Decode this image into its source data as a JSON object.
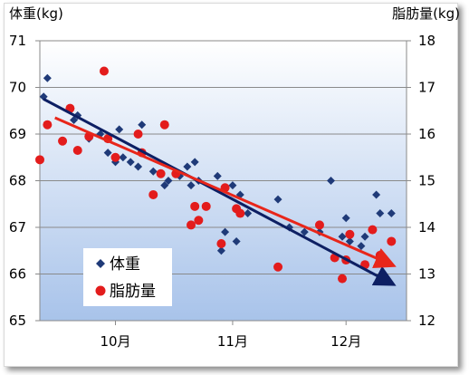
{
  "chart_data": {
    "type": "scatter",
    "title": "",
    "y_left_label": "体重(kg)",
    "y_right_label": "脂肪量(kg)",
    "y_left_ticks": [
      65,
      66,
      67,
      68,
      69,
      70,
      71
    ],
    "y_right_ticks": [
      12,
      13,
      14,
      15,
      16,
      17,
      18
    ],
    "y_left_lim": [
      65,
      71
    ],
    "y_right_lim": [
      12,
      18
    ],
    "x_ticks": [
      "10月",
      "11月",
      "12月"
    ],
    "x_lim": [
      "2012-09-11",
      "2012-12-17"
    ],
    "x_tick_dates": [
      "2012-10-01",
      "2012-11-01",
      "2012-12-01"
    ],
    "grid": "horizontal",
    "legend_placement": "bottom-left",
    "series": [
      {
        "name": "体重",
        "axis": "left",
        "marker": "diamond",
        "color": "#1f3a78",
        "points": [
          [
            "2012-09-12",
            69.8
          ],
          [
            "2012-09-13",
            70.2
          ],
          [
            "2012-09-20",
            69.3
          ],
          [
            "2012-09-21",
            69.4
          ],
          [
            "2012-09-24",
            68.9
          ],
          [
            "2012-09-27",
            69.0
          ],
          [
            "2012-09-29",
            68.6
          ],
          [
            "2012-10-01",
            68.4
          ],
          [
            "2012-10-02",
            69.1
          ],
          [
            "2012-10-03",
            68.5
          ],
          [
            "2012-10-05",
            68.4
          ],
          [
            "2012-10-07",
            68.3
          ],
          [
            "2012-10-08",
            69.2
          ],
          [
            "2012-10-11",
            68.2
          ],
          [
            "2012-10-14",
            67.9
          ],
          [
            "2012-10-15",
            68.0
          ],
          [
            "2012-10-18",
            68.1
          ],
          [
            "2012-10-20",
            68.3
          ],
          [
            "2012-10-21",
            67.9
          ],
          [
            "2012-10-22",
            68.4
          ],
          [
            "2012-10-23",
            68.0
          ],
          [
            "2012-10-28",
            68.1
          ],
          [
            "2012-10-29",
            66.5
          ],
          [
            "2012-10-30",
            66.9
          ],
          [
            "2012-11-01",
            67.9
          ],
          [
            "2012-11-02",
            66.7
          ],
          [
            "2012-11-03",
            67.7
          ],
          [
            "2012-11-05",
            67.3
          ],
          [
            "2012-11-13",
            67.6
          ],
          [
            "2012-11-16",
            67.0
          ],
          [
            "2012-11-20",
            66.9
          ],
          [
            "2012-11-24",
            66.9
          ],
          [
            "2012-11-27",
            68.0
          ],
          [
            "2012-11-30",
            66.8
          ],
          [
            "2012-12-01",
            67.2
          ],
          [
            "2012-12-02",
            66.7
          ],
          [
            "2012-12-05",
            66.6
          ],
          [
            "2012-12-06",
            66.8
          ],
          [
            "2012-12-09",
            67.7
          ],
          [
            "2012-12-10",
            67.3
          ],
          [
            "2012-12-13",
            67.3
          ]
        ]
      },
      {
        "name": "脂肪量",
        "axis": "right",
        "marker": "circle",
        "color": "#e31c1c",
        "points": [
          [
            "2012-09-11",
            15.45
          ],
          [
            "2012-09-13",
            16.2
          ],
          [
            "2012-09-17",
            15.85
          ],
          [
            "2012-09-19",
            16.55
          ],
          [
            "2012-09-21",
            15.65
          ],
          [
            "2012-09-24",
            15.95
          ],
          [
            "2012-09-28",
            17.35
          ],
          [
            "2012-09-29",
            15.9
          ],
          [
            "2012-10-01",
            15.5
          ],
          [
            "2012-10-07",
            16.0
          ],
          [
            "2012-10-08",
            15.6
          ],
          [
            "2012-10-11",
            14.7
          ],
          [
            "2012-10-13",
            15.15
          ],
          [
            "2012-10-14",
            16.2
          ],
          [
            "2012-10-17",
            15.15
          ],
          [
            "2012-10-21",
            14.05
          ],
          [
            "2012-10-22",
            14.45
          ],
          [
            "2012-10-23",
            14.15
          ],
          [
            "2012-10-25",
            14.45
          ],
          [
            "2012-10-29",
            13.65
          ],
          [
            "2012-10-30",
            14.85
          ],
          [
            "2012-11-02",
            14.4
          ],
          [
            "2012-11-03",
            14.3
          ],
          [
            "2012-11-13",
            13.15
          ],
          [
            "2012-11-24",
            14.05
          ],
          [
            "2012-11-28",
            13.35
          ],
          [
            "2012-11-30",
            12.9
          ],
          [
            "2012-12-01",
            13.3
          ],
          [
            "2012-12-02",
            13.85
          ],
          [
            "2012-12-06",
            13.2
          ],
          [
            "2012-12-08",
            13.95
          ],
          [
            "2012-12-10",
            13.4
          ],
          [
            "2012-12-13",
            13.7
          ]
        ]
      }
    ],
    "trendlines": [
      {
        "series": "体重",
        "color": "#0d1f63",
        "arrow": true,
        "from": [
          "2012-09-12",
          69.75
        ],
        "to": [
          "2012-12-13",
          65.8
        ]
      },
      {
        "series": "脂肪量",
        "color": "#e8261a",
        "arrow": true,
        "from": [
          "2012-09-15",
          16.35
        ],
        "to": [
          "2012-12-13",
          13.2
        ]
      }
    ]
  }
}
